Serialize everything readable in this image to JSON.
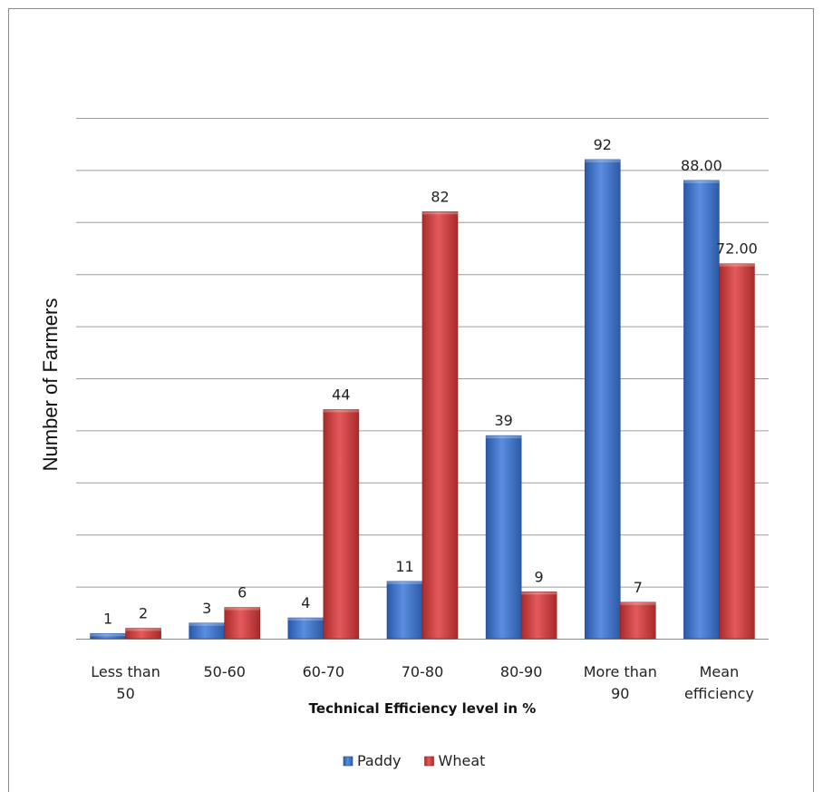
{
  "chart_data": {
    "type": "bar",
    "title": "",
    "xlabel": "Technical Efficiency level in %",
    "ylabel": "Number of Farmers",
    "categories": [
      [
        "Less than",
        "50"
      ],
      [
        "50-60"
      ],
      [
        "60-70"
      ],
      [
        "70-80"
      ],
      [
        "80-90"
      ],
      [
        "More than",
        "90"
      ],
      [
        "Mean",
        "efficiency"
      ]
    ],
    "series": [
      {
        "name": "Paddy",
        "color": "#3b6fc4",
        "values": [
          1,
          3,
          4,
          11,
          39,
          92,
          88
        ],
        "labels": [
          "1",
          "3",
          "4",
          "11",
          "39",
          "92",
          "88.00"
        ]
      },
      {
        "name": "Wheat",
        "color": "#c93a3a",
        "values": [
          2,
          6,
          44,
          82,
          9,
          7,
          72
        ],
        "labels": [
          "2",
          "6",
          "44",
          "82",
          "9",
          "7",
          "72.00"
        ]
      }
    ],
    "ylim": [
      0,
      100
    ],
    "grid": true,
    "legend": "bottom-center"
  }
}
